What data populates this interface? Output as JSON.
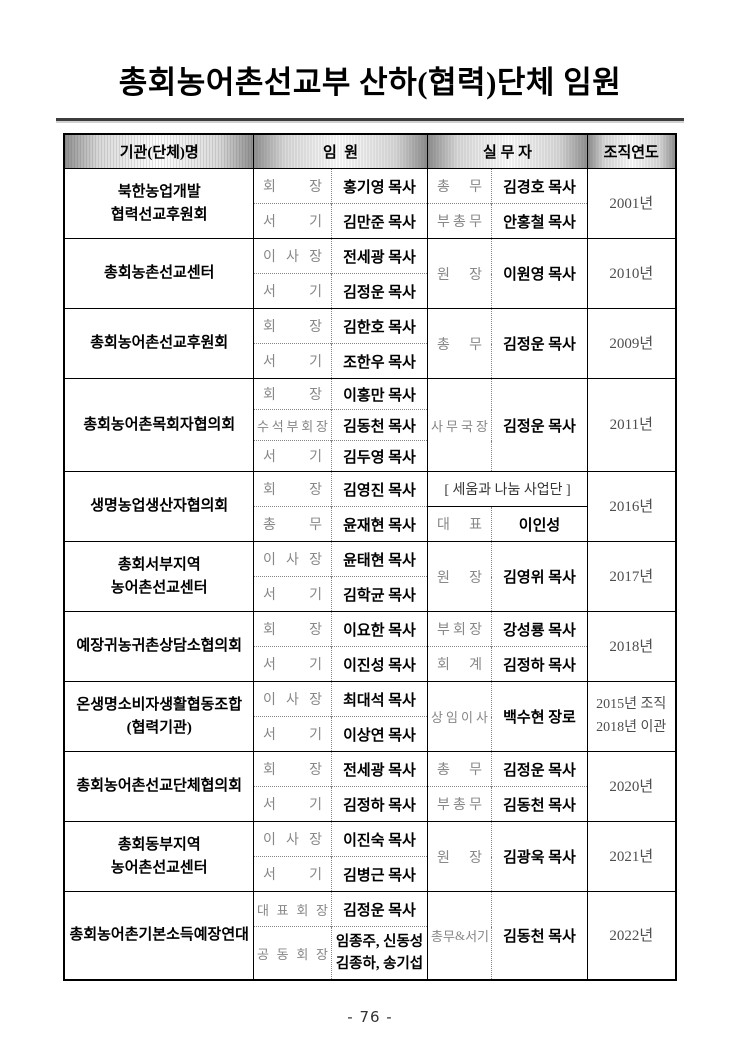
{
  "page": {
    "title": "총회농어촌선교부 산하(협력)단체 임원",
    "page_number": "- 76 -"
  },
  "colors": {
    "header_gradient_edge": "#8f8f8f",
    "role_text": "#878787",
    "table_border": "#000000"
  },
  "table": {
    "headers": {
      "org": "기관(단체)명",
      "officers": "임  원",
      "staff": "실 무 자",
      "year": "조직연도"
    },
    "groups": [
      {
        "org": "북한농업개발\n협력선교후원회",
        "officers": [
          {
            "role": "회 장",
            "name": "홍기영 목사"
          },
          {
            "role": "서 기",
            "name": "김만준 목사"
          }
        ],
        "staff": [
          {
            "role": "총 무",
            "name": "김경호 목사"
          },
          {
            "role": "부 총 무",
            "name": "안홍철 목사"
          }
        ],
        "year": "2001년"
      },
      {
        "org": "총회농촌선교센터",
        "officers": [
          {
            "role": "이 사 장",
            "name": "전세광 목사"
          },
          {
            "role": "서 기",
            "name": "김정운 목사"
          }
        ],
        "staff": [
          {
            "role": "원 장",
            "name": "이원영 목사"
          }
        ],
        "year": "2010년"
      },
      {
        "org": "총회농어촌선교후원회",
        "officers": [
          {
            "role": "회 장",
            "name": "김한호 목사"
          },
          {
            "role": "서 기",
            "name": "조한우 목사"
          }
        ],
        "staff": [
          {
            "role": "총 무",
            "name": "김정운 목사"
          }
        ],
        "year": "2009년"
      },
      {
        "org": "총회농어촌목회자협의회",
        "officers": [
          {
            "role": "회 장",
            "name": "이홍만 목사"
          },
          {
            "role": "수석부회장",
            "name": "김동천 목사"
          },
          {
            "role": "서 기",
            "name": "김두영 목사"
          }
        ],
        "staff": [
          {
            "role": "사무국장",
            "name": "김정운 목사"
          }
        ],
        "year": "2011년"
      },
      {
        "org": "생명농업생산자협의회",
        "officers": [
          {
            "role": "회 장",
            "name": "김영진 목사"
          },
          {
            "role": "총 무",
            "name": "윤재현 목사"
          }
        ],
        "staff_banner": "[ 세움과 나눔 사업단 ]",
        "staff": [
          {
            "role": "대 표",
            "name": "이인성"
          }
        ],
        "year": "2016년"
      },
      {
        "org": "총회서부지역\n농어촌선교센터",
        "officers": [
          {
            "role": "이 사 장",
            "name": "윤태현 목사"
          },
          {
            "role": "서 기",
            "name": "김학균 목사"
          }
        ],
        "staff": [
          {
            "role": "원 장",
            "name": "김영위 목사"
          }
        ],
        "year": "2017년"
      },
      {
        "org": "예장귀농귀촌상담소협의회",
        "officers": [
          {
            "role": "회 장",
            "name": "이요한 목사"
          },
          {
            "role": "서 기",
            "name": "이진성 목사"
          }
        ],
        "staff": [
          {
            "role": "부 회 장",
            "name": "강성룡 목사"
          },
          {
            "role": "회 계",
            "name": "김정하 목사"
          }
        ],
        "year": "2018년"
      },
      {
        "org": "온생명소비자생활협동조합\n(협력기관)",
        "officers": [
          {
            "role": "이 사 장",
            "name": "최대석 목사"
          },
          {
            "role": "서 기",
            "name": "이상연 목사"
          }
        ],
        "staff": [
          {
            "role": "상임이사",
            "name": "백수현 장로"
          }
        ],
        "year": "2015년 조직\n2018년 이관"
      },
      {
        "org": "총회농어촌선교단체협의회",
        "officers": [
          {
            "role": "회 장",
            "name": "전세광 목사"
          },
          {
            "role": "서 기",
            "name": "김정하 목사"
          }
        ],
        "staff": [
          {
            "role": "총 무",
            "name": "김정운 목사"
          },
          {
            "role": "부 총 무",
            "name": "김동천 목사"
          }
        ],
        "year": "2020년"
      },
      {
        "org": "총회동부지역\n농어촌선교센터",
        "officers": [
          {
            "role": "이 사 장",
            "name": "이진숙 목사"
          },
          {
            "role": "서 기",
            "name": "김병근 목사"
          }
        ],
        "staff": [
          {
            "role": "원 장",
            "name": "김광욱 목사"
          }
        ],
        "year": "2021년"
      },
      {
        "org": "총회농어촌기본소득예장연대",
        "officers": [
          {
            "role": "대표회장",
            "name": "김정운 목사"
          },
          {
            "role": "공동회장",
            "name": "임종주, 신동성\n김종하, 송기섭"
          }
        ],
        "staff": [
          {
            "role": "총무&서기",
            "name": "김동천 목사"
          }
        ],
        "year": "2022년"
      }
    ]
  }
}
